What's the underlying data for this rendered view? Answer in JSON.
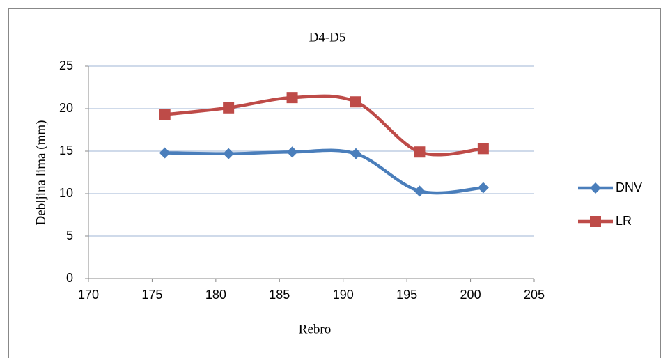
{
  "chart_data": {
    "type": "line",
    "title": "D4-D5",
    "x_label": "Rebro",
    "y_label": "Debljina lima (mm)",
    "x": [
      176,
      181,
      186,
      191,
      196,
      201
    ],
    "series": [
      {
        "name": "DNV",
        "color": "#4a7ebb",
        "marker": "diamond",
        "values": [
          14.8,
          14.7,
          14.9,
          14.7,
          10.3,
          10.7
        ]
      },
      {
        "name": "LR",
        "color": "#be4b48",
        "marker": "square",
        "values": [
          19.3,
          20.1,
          21.3,
          20.8,
          14.9,
          15.3
        ]
      }
    ],
    "xlim": [
      170,
      205
    ],
    "xticks": [
      170,
      175,
      180,
      185,
      190,
      195,
      200,
      205
    ],
    "ylim": [
      0,
      25
    ],
    "yticks": [
      0,
      5,
      10,
      15,
      20,
      25
    ],
    "grid": true,
    "smooth": true,
    "legend": "right"
  }
}
